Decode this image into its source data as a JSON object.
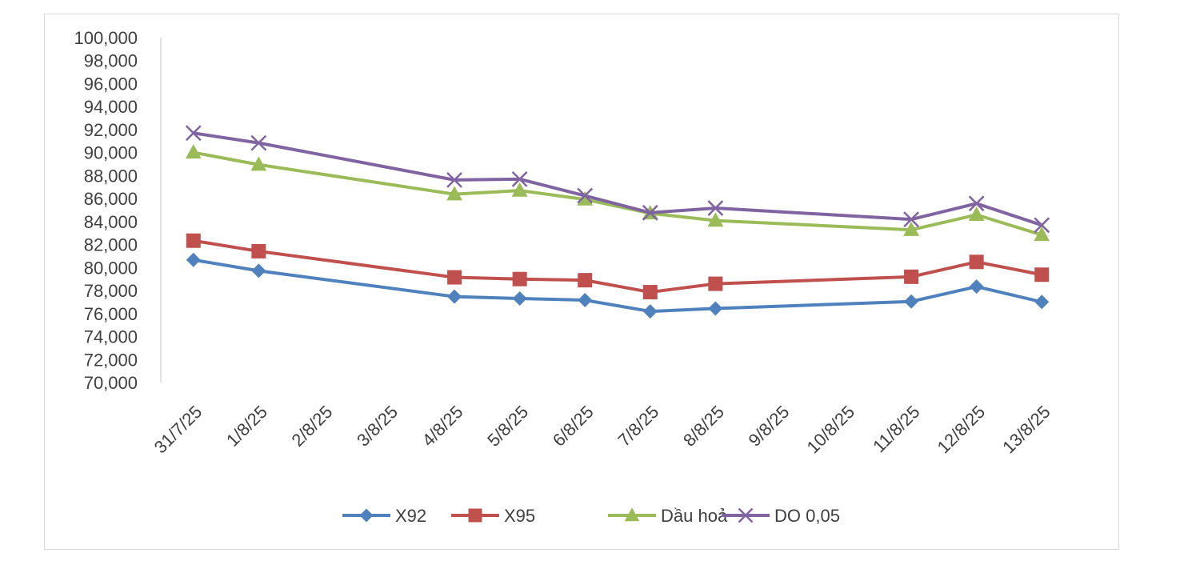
{
  "chart_data": {
    "type": "line",
    "title": "",
    "xlabel": "",
    "ylabel": "",
    "categories": [
      "31/7/25",
      "1/8/25",
      "2/8/25",
      "3/8/25",
      "4/8/25",
      "5/8/25",
      "6/8/25",
      "7/8/25",
      "8/8/25",
      "9/8/25",
      "10/8/25",
      "11/8/25",
      "12/8/25",
      "13/8/25"
    ],
    "ylim": [
      70000,
      100000
    ],
    "ytick_step": 2000,
    "ytick_labels": [
      "70,000",
      "72,000",
      "74,000",
      "76,000",
      "78,000",
      "80,000",
      "82,000",
      "84,000",
      "86,000",
      "88,000",
      "90,000",
      "92,000",
      "94,000",
      "96,000",
      "98,000",
      "100,000"
    ],
    "grid": false,
    "legend_position": "bottom",
    "series": [
      {
        "name": "X92",
        "color": "#4f81bd",
        "marker": "diamond",
        "values": [
          80670,
          79720,
          null,
          null,
          77470,
          77310,
          77170,
          76190,
          76440,
          null,
          null,
          77050,
          78340,
          77010
        ]
      },
      {
        "name": "X95",
        "color": "#c0504d",
        "marker": "square",
        "values": [
          82340,
          81420,
          null,
          null,
          79150,
          79000,
          78900,
          77860,
          78590,
          null,
          null,
          79200,
          80490,
          79380
        ]
      },
      {
        "name": "Dầu hoả",
        "color": "#9bbb59",
        "marker": "triangle",
        "values": [
          90010,
          88950,
          null,
          null,
          86380,
          86700,
          85930,
          84720,
          84090,
          null,
          null,
          83280,
          84590,
          82840
        ]
      },
      {
        "name": "DO 0,05",
        "color": "#8064a2",
        "marker": "x",
        "values": [
          91700,
          90840,
          null,
          null,
          87620,
          87690,
          86250,
          84770,
          85170,
          null,
          null,
          84190,
          85570,
          83690
        ]
      }
    ]
  }
}
